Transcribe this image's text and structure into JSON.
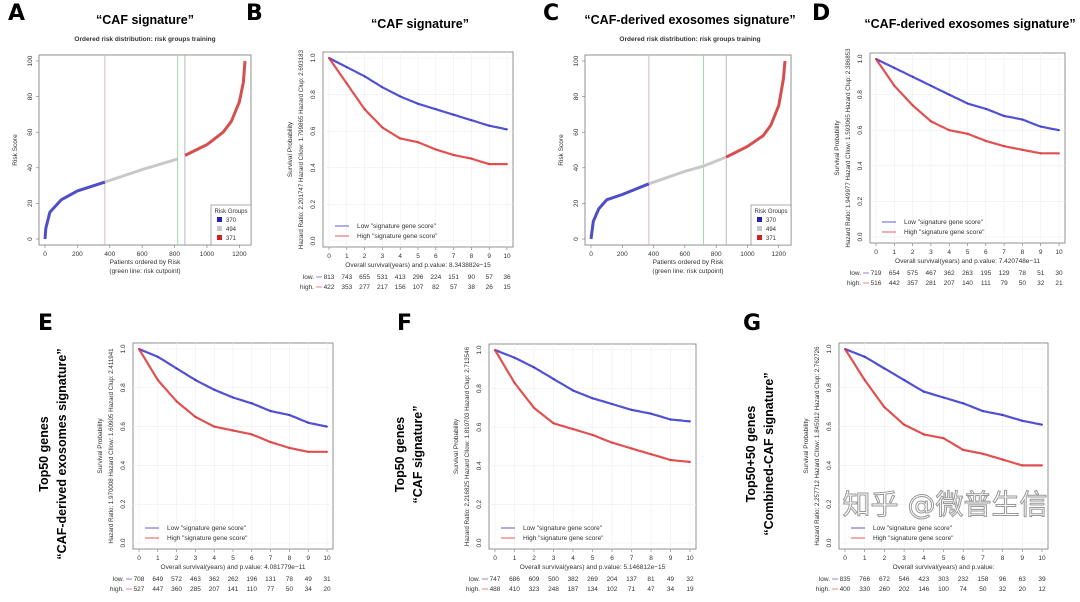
{
  "figure": {
    "watermark": "知乎 @微普生信"
  },
  "chart_data": [
    {
      "panel": "A",
      "type": "scatter",
      "title": "“CAF signature”",
      "subtitle": "Ordered risk distribution: risk groups training",
      "xlabel": "Patients ordered by Risk",
      "xlabel2": "(green line: risk cutpoint)",
      "ylabel": "Risk Score",
      "xlim": [
        0,
        1235
      ],
      "ylim": [
        0,
        100
      ],
      "xticks": [
        "0",
        "200",
        "400",
        "600",
        "800",
        "1000",
        "1200"
      ],
      "yticks": [
        "0",
        "20",
        "40",
        "60",
        "80",
        "100"
      ],
      "curve": [
        [
          0,
          0
        ],
        [
          5,
          6
        ],
        [
          30,
          15
        ],
        [
          100,
          22
        ],
        [
          200,
          27
        ],
        [
          370,
          32
        ],
        [
          600,
          39
        ],
        [
          820,
          45
        ],
        [
          865,
          47
        ],
        [
          1000,
          53
        ],
        [
          1100,
          60
        ],
        [
          1150,
          66
        ],
        [
          1200,
          77
        ],
        [
          1225,
          88
        ],
        [
          1235,
          100
        ]
      ],
      "boundaries": [
        370,
        864
      ],
      "cutpoint": 820,
      "legend_title": "Risk Groups",
      "groups": [
        {
          "label": "370",
          "color": "#2222bb"
        },
        {
          "label": "494",
          "color": "#c8c8c8"
        },
        {
          "label": "371",
          "color": "#cc2222"
        }
      ]
    },
    {
      "panel": "B",
      "type": "line",
      "title": "“CAF signature”",
      "ylabel": "Survival Probability",
      "stats": "Hazard Ratio: 2.201747  Hazard CIlow: 1.799865  Hazard CIup: 2.693183",
      "xlabel": "Overall survival(years) and p.value:  8.343882e−15",
      "xlim": [
        0,
        10
      ],
      "ylim": [
        0,
        1
      ],
      "series": [
        {
          "name": "Low \"signature gene score\"",
          "color": "#3333cc",
          "values": [
            1,
            0.95,
            0.9,
            0.84,
            0.79,
            0.75,
            0.72,
            0.69,
            0.66,
            0.63,
            0.61
          ]
        },
        {
          "name": "High \"signature gene score\"",
          "color": "#dd3333",
          "values": [
            1,
            0.86,
            0.72,
            0.62,
            0.56,
            0.54,
            0.5,
            0.47,
            0.45,
            0.42,
            0.42
          ]
        }
      ],
      "risk_table": {
        "low_label": "low.",
        "high_label": "high.",
        "low": [
          "813",
          "743",
          "655",
          "531",
          "413",
          "296",
          "224",
          "151",
          "90",
          "57",
          "36"
        ],
        "high": [
          "422",
          "353",
          "277",
          "217",
          "156",
          "107",
          "82",
          "57",
          "38",
          "26",
          "15"
        ]
      }
    },
    {
      "panel": "C",
      "type": "scatter",
      "title": "“CAF-derived exosomes signature”",
      "subtitle": "Ordered risk distribution: risk groups training",
      "xlabel": "Patients ordered by Risk",
      "xlabel2": "(green line: risk cutpoint)",
      "ylabel": "Risk Score",
      "xlim": [
        0,
        1240
      ],
      "ylim": [
        0,
        100
      ],
      "xticks": [
        "0",
        "200",
        "400",
        "600",
        "800",
        "1000",
        "1200"
      ],
      "yticks": [
        "0",
        "20",
        "40",
        "60",
        "80",
        "100"
      ],
      "curve": [
        [
          0,
          0
        ],
        [
          15,
          10
        ],
        [
          50,
          17
        ],
        [
          100,
          22
        ],
        [
          200,
          25
        ],
        [
          370,
          31
        ],
        [
          600,
          38
        ],
        [
          720,
          41
        ],
        [
          864,
          46
        ],
        [
          1000,
          52
        ],
        [
          1100,
          58
        ],
        [
          1150,
          64
        ],
        [
          1200,
          75
        ],
        [
          1230,
          90
        ],
        [
          1240,
          100
        ]
      ],
      "boundaries": [
        370,
        864
      ],
      "cutpoint": 720,
      "legend_title": "Risk Groups",
      "groups": [
        {
          "label": "370",
          "color": "#2222bb"
        },
        {
          "label": "494",
          "color": "#c8c8c8"
        },
        {
          "label": "371",
          "color": "#cc2222"
        }
      ]
    },
    {
      "panel": "D",
      "type": "line",
      "title": "“CAF-derived exosomes signature”",
      "ylabel": "Survival Probability",
      "stats": "Hazard Ratio: 1.949977  Hazard CIlow: 1.593065  Hazard CIup: 2.386853",
      "xlabel": "Overall survival(years) and p.value:  7.420748e−11",
      "xlim": [
        0,
        10
      ],
      "ylim": [
        0,
        1
      ],
      "series": [
        {
          "name": "Low \"signature gene score\"",
          "color": "#3333cc",
          "values": [
            1,
            0.95,
            0.9,
            0.85,
            0.8,
            0.75,
            0.72,
            0.68,
            0.66,
            0.62,
            0.6
          ]
        },
        {
          "name": "High \"signature gene score\"",
          "color": "#dd3333",
          "values": [
            1,
            0.85,
            0.74,
            0.65,
            0.6,
            0.58,
            0.54,
            0.51,
            0.49,
            0.47,
            0.47
          ]
        }
      ],
      "risk_table": {
        "low_label": "low.",
        "high_label": "high.",
        "low": [
          "719",
          "654",
          "575",
          "467",
          "362",
          "263",
          "195",
          "129",
          "78",
          "51",
          "30"
        ],
        "high": [
          "516",
          "442",
          "357",
          "281",
          "207",
          "140",
          "111",
          "79",
          "50",
          "32",
          "21"
        ]
      }
    },
    {
      "panel": "E",
      "type": "line",
      "side_label": [
        "Top50 genes",
        "“CAF-derived exosomes signature”"
      ],
      "ylabel": "Survival Probability",
      "stats": "Hazard Ratio: 1.970008  Hazard CIlow: 1.60905  Hazard CIup: 2.411941",
      "xlabel": "Overall survival(years) and p.value:  4.081779e−11",
      "xlim": [
        0,
        10
      ],
      "ylim": [
        0,
        1
      ],
      "series": [
        {
          "name": "Low \"signature gene score\"",
          "color": "#3333cc",
          "values": [
            1,
            0.96,
            0.9,
            0.84,
            0.79,
            0.75,
            0.72,
            0.68,
            0.66,
            0.62,
            0.6
          ]
        },
        {
          "name": "High \"signature gene score\"",
          "color": "#dd3333",
          "values": [
            1,
            0.84,
            0.73,
            0.65,
            0.6,
            0.58,
            0.56,
            0.52,
            0.49,
            0.47,
            0.47
          ]
        }
      ],
      "risk_table": {
        "low_label": "low.",
        "high_label": "high.",
        "low": [
          "708",
          "649",
          "572",
          "463",
          "362",
          "262",
          "196",
          "131",
          "78",
          "49",
          "31"
        ],
        "high": [
          "527",
          "447",
          "360",
          "285",
          "207",
          "141",
          "110",
          "77",
          "50",
          "34",
          "20"
        ]
      }
    },
    {
      "panel": "F",
      "type": "line",
      "side_label": [
        "Top50 genes",
        "“CAF signature”"
      ],
      "ylabel": "Survival Probability",
      "stats": "Hazard Ratio: 2.216825  Hazard CIlow: 1.810703  Hazard CIup: 2.713546",
      "xlabel": "Overall survival(years) and p.value:  5.146812e−15",
      "xlim": [
        0,
        10
      ],
      "ylim": [
        0,
        1
      ],
      "series": [
        {
          "name": "Low \"signature gene score\"",
          "color": "#3333cc",
          "values": [
            1,
            0.96,
            0.91,
            0.85,
            0.79,
            0.75,
            0.72,
            0.69,
            0.67,
            0.64,
            0.63
          ]
        },
        {
          "name": "High \"signature gene score\"",
          "color": "#dd3333",
          "values": [
            1,
            0.83,
            0.7,
            0.62,
            0.59,
            0.56,
            0.52,
            0.49,
            0.46,
            0.43,
            0.42
          ]
        }
      ],
      "risk_table": {
        "low_label": "low.",
        "high_label": "high.",
        "low": [
          "747",
          "686",
          "609",
          "500",
          "382",
          "269",
          "204",
          "137",
          "81",
          "49",
          "32"
        ],
        "high": [
          "488",
          "410",
          "323",
          "248",
          "187",
          "134",
          "102",
          "71",
          "47",
          "34",
          "19"
        ]
      }
    },
    {
      "panel": "G",
      "type": "line",
      "side_label": [
        "Top50+50 genes",
        "“Combined-CAF signature”"
      ],
      "ylabel": "Survival Probability",
      "stats": "Hazard Ratio: 2.257712  Hazard CIlow: 1.845012  Hazard CIup: 2.762726",
      "xlabel": "Overall survival(years) and p.value:",
      "xlim": [
        0,
        10
      ],
      "ylim": [
        0,
        1
      ],
      "series": [
        {
          "name": "Low \"signature gene score\"",
          "color": "#3333cc",
          "values": [
            1,
            0.96,
            0.9,
            0.84,
            0.78,
            0.75,
            0.72,
            0.68,
            0.66,
            0.63,
            0.61
          ]
        },
        {
          "name": "High \"signature gene score\"",
          "color": "#dd3333",
          "values": [
            1,
            0.84,
            0.7,
            0.61,
            0.56,
            0.54,
            0.48,
            0.46,
            0.43,
            0.4,
            0.4
          ]
        }
      ],
      "risk_table": {
        "low_label": "low.",
        "high_label": "high.",
        "low": [
          "835",
          "766",
          "672",
          "546",
          "423",
          "303",
          "232",
          "158",
          "96",
          "63",
          "39"
        ],
        "high": [
          "400",
          "330",
          "260",
          "202",
          "146",
          "100",
          "74",
          "50",
          "32",
          "20",
          "12"
        ]
      }
    }
  ]
}
